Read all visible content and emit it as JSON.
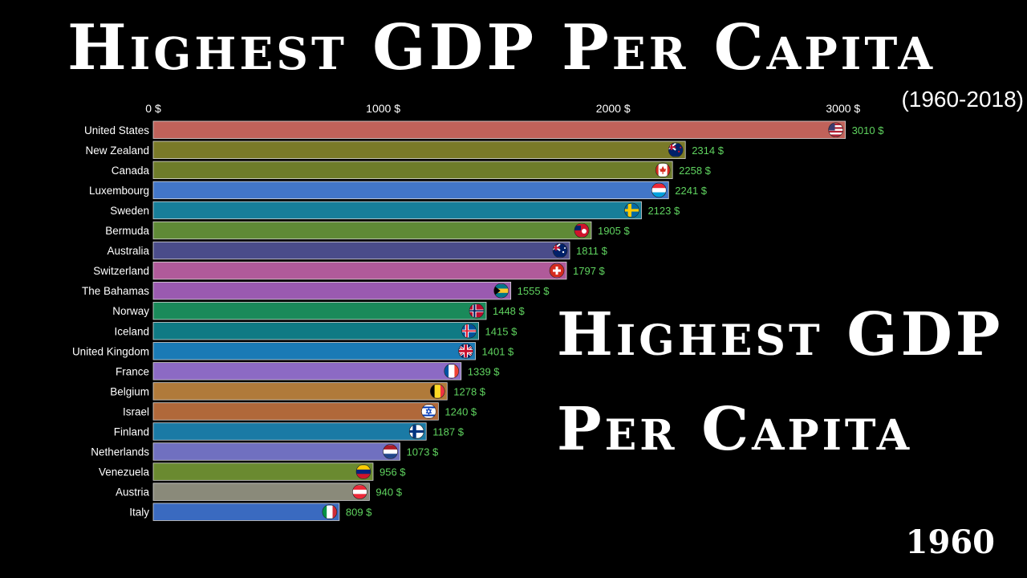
{
  "header": {
    "title": "Highest GDP Per Capita",
    "subtitle": "(1960-2018)"
  },
  "overlay": {
    "line1": "Highest GDP",
    "line2": "Per Capita"
  },
  "year": "1960",
  "colors": {
    "background": "#000000",
    "value_label": "#5fd35f",
    "axis_text": "#ffffff"
  },
  "chart_data": {
    "type": "bar",
    "orientation": "horizontal",
    "xlim": [
      0,
      3000
    ],
    "ticks": [
      {
        "value": 0,
        "label": "0 $"
      },
      {
        "value": 1000,
        "label": "1000 $"
      },
      {
        "value": 2000,
        "label": "2000 $"
      },
      {
        "value": 3000,
        "label": "3000 $"
      }
    ],
    "tick_position": "top",
    "grid": false,
    "categories": [
      "United States",
      "New Zealand",
      "Canada",
      "Luxembourg",
      "Sweden",
      "Bermuda",
      "Australia",
      "Switzerland",
      "The Bahamas",
      "Norway",
      "Iceland",
      "United Kingdom",
      "France",
      "Belgium",
      "Israel",
      "Finland",
      "Netherlands",
      "Venezuela",
      "Austria",
      "Italy"
    ],
    "values": [
      3010,
      2314,
      2258,
      2241,
      2123,
      1905,
      1811,
      1797,
      1555,
      1448,
      1415,
      1401,
      1339,
      1278,
      1240,
      1187,
      1073,
      956,
      940,
      809
    ],
    "value_labels": [
      "3010 $",
      "2314 $",
      "2258 $",
      "2241 $",
      "2123 $",
      "1905 $",
      "1811 $",
      "1797 $",
      "1555 $",
      "1448 $",
      "1415 $",
      "1401 $",
      "1339 $",
      "1278 $",
      "1240 $",
      "1187 $",
      "1073 $",
      "956 $",
      "940 $",
      "809 $"
    ],
    "bar_colors": [
      "#c0625a",
      "#7a7a28",
      "#6e7c2a",
      "#4276c8",
      "#177e99",
      "#5f8a36",
      "#4a4c8a",
      "#b05a9a",
      "#9a5ab0",
      "#1a8a5a",
      "#0f7a84",
      "#1a7ab5",
      "#8c6ac4",
      "#b07a3a",
      "#b0683a",
      "#1a7aa5",
      "#7070c0",
      "#6a8a30",
      "#8a8a7a",
      "#3a6ac0"
    ],
    "flags": [
      "usa-flag",
      "new-zealand-flag",
      "canada-flag",
      "luxembourg-flag",
      "sweden-flag",
      "bermuda-flag",
      "australia-flag",
      "switzerland-flag",
      "bahamas-flag",
      "norway-flag",
      "iceland-flag",
      "uk-flag",
      "france-flag",
      "belgium-flag",
      "israel-flag",
      "finland-flag",
      "netherlands-flag",
      "venezuela-flag",
      "austria-flag",
      "italy-flag"
    ]
  }
}
